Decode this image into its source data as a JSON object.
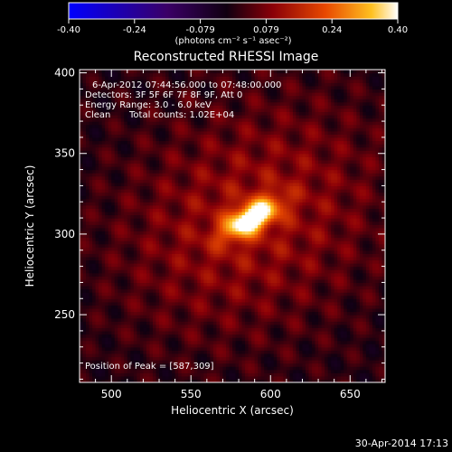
{
  "chart_data": {
    "type": "heatmap",
    "title": "Reconstructed RHESSI Image",
    "xlabel": "Heliocentric X (arcsec)",
    "ylabel": "Heliocentric Y (arcsec)",
    "xlim": [
      480,
      672
    ],
    "ylim": [
      208,
      402
    ],
    "x_ticks": [
      500,
      550,
      600,
      650
    ],
    "y_ticks": [
      250,
      300,
      350,
      400
    ],
    "colorbar": {
      "ticks": [
        "-0.40",
        "-0.24",
        "-0.079",
        "0.079",
        "0.24",
        "0.40"
      ],
      "range": [
        -0.4,
        0.4
      ],
      "units_label": "(photons cm⁻² s⁻¹ asec⁻²)"
    },
    "annotations": {
      "time_range": "6-Apr-2012 07:44:56.000 to 07:48:00.000",
      "detectors": "Detectors: 3F 5F 6F 7F 8F 9F, Att 0",
      "energy": "Energy Range: 3.0 - 6.0 keV",
      "clean": "Clean",
      "counts": "Total counts: 1.02E+04",
      "peak": "Position of Peak = [587,309]"
    },
    "peak": {
      "x": 587,
      "y": 309,
      "value": 0.4
    },
    "source_elongation_deg": 30
  },
  "footer": {
    "date_stamp": "30-Apr-2014 17:13"
  },
  "colors": {
    "background": "#000000",
    "text": "#ffffff",
    "colormap": [
      "#0000ff",
      "#4b0082",
      "#000000",
      "#8b0000",
      "#ff8000",
      "#ffffff"
    ]
  }
}
